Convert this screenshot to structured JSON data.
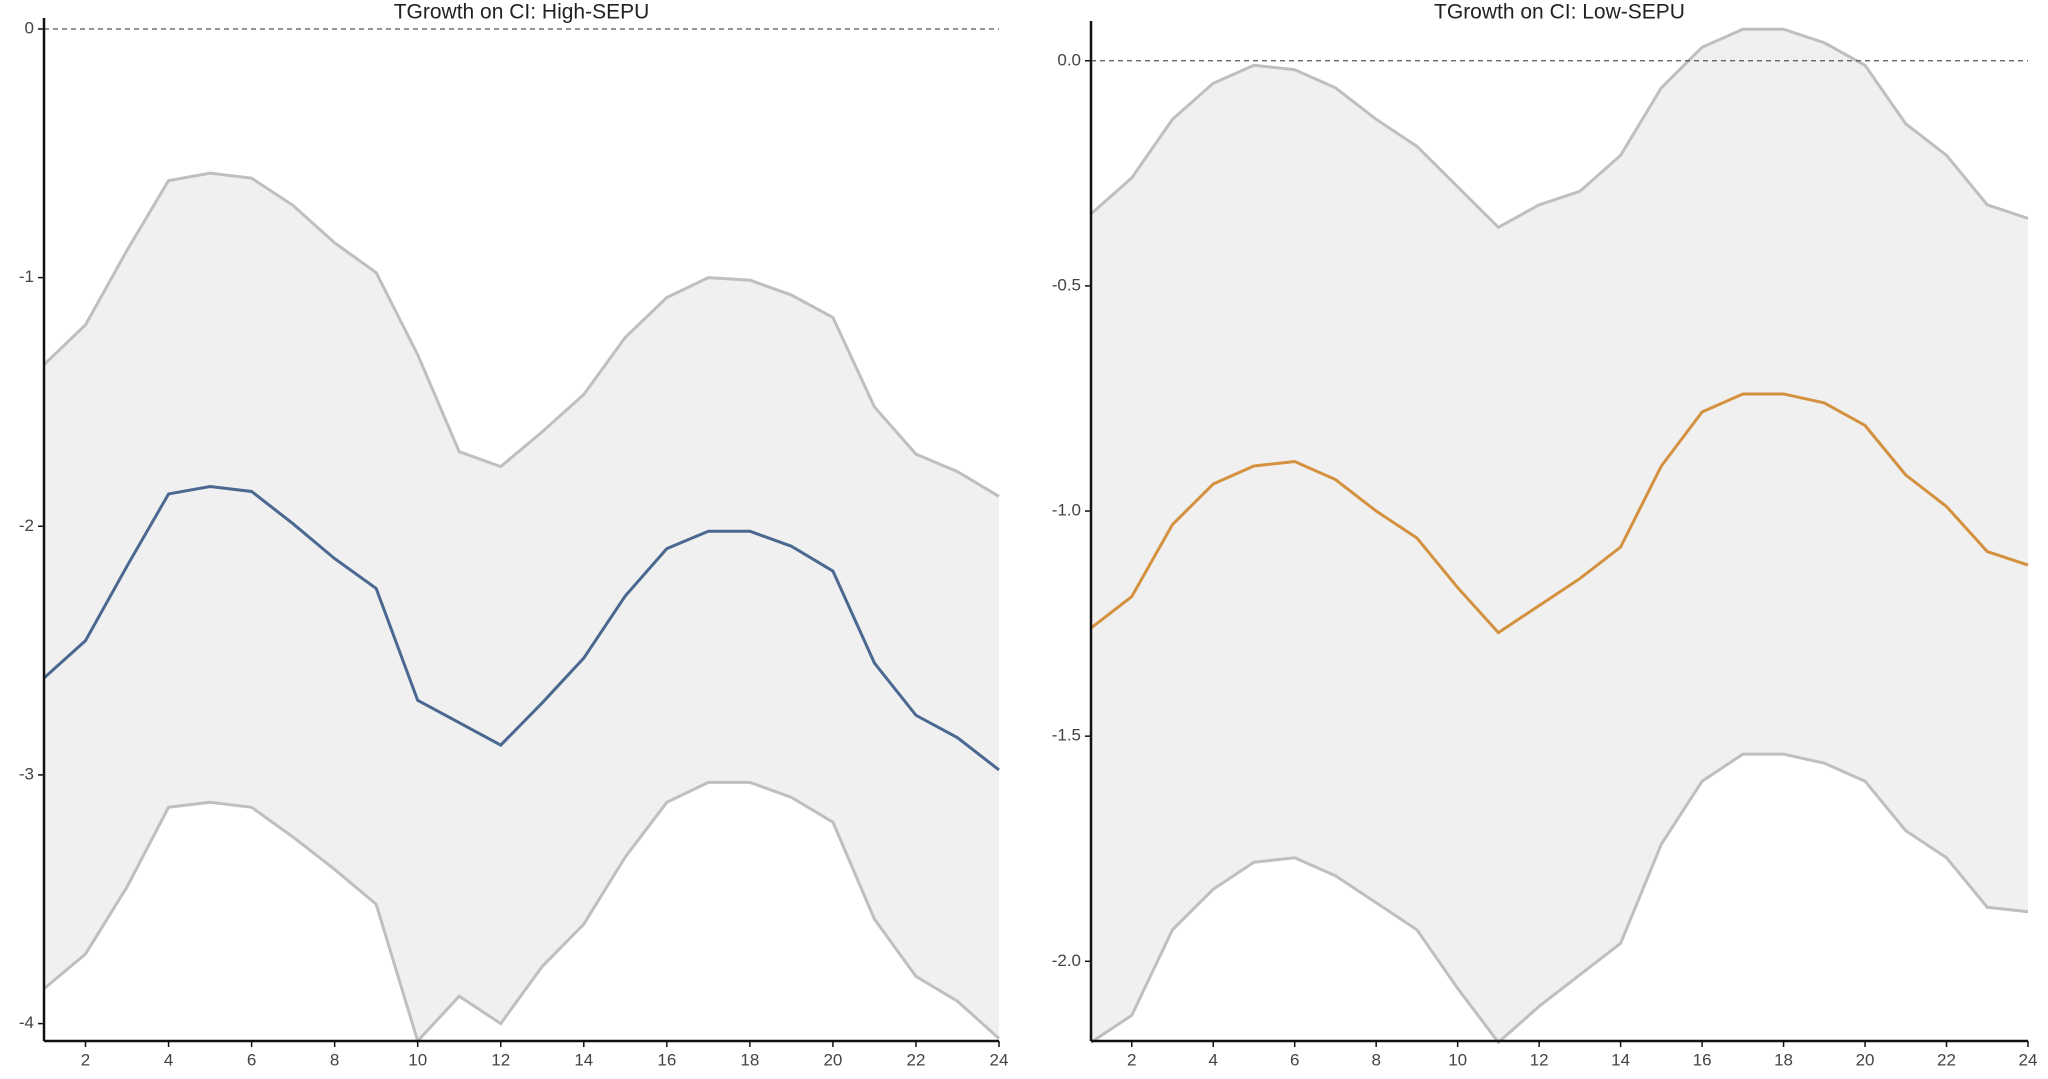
{
  "chart_data": [
    {
      "type": "line",
      "title": "TGrowth on CI: High-SEPU",
      "x": [
        1,
        2,
        3,
        4,
        5,
        6,
        7,
        8,
        9,
        10,
        11,
        12,
        13,
        14,
        15,
        16,
        17,
        18,
        19,
        20,
        21,
        22,
        23,
        24
      ],
      "series": [
        {
          "color": "#4a6890",
          "values": [
            -2.61,
            -2.46,
            -2.16,
            -1.87,
            -1.84,
            -1.86,
            -1.99,
            -2.13,
            -2.25,
            -2.7,
            -2.79,
            -2.88,
            -2.71,
            -2.53,
            -2.28,
            -2.09,
            -2.02,
            -2.02,
            -2.08,
            -2.18,
            -2.55,
            -2.76,
            -2.85,
            -2.98
          ]
        }
      ],
      "band": {
        "color": "#bfbfbf",
        "fill": "#f0f0f0",
        "upper": [
          -1.35,
          -1.19,
          -0.89,
          -0.61,
          -0.58,
          -0.6,
          -0.71,
          -0.86,
          -0.98,
          -1.31,
          -1.7,
          -1.76,
          -1.62,
          -1.47,
          -1.24,
          -1.08,
          -1.0,
          -1.01,
          -1.07,
          -1.16,
          -1.52,
          -1.71,
          -1.78,
          -1.88
        ],
        "lower": [
          -3.86,
          -3.72,
          -3.45,
          -3.13,
          -3.11,
          -3.13,
          -3.25,
          -3.38,
          -3.52,
          -4.07,
          -3.89,
          -4.0,
          -3.77,
          -3.6,
          -3.33,
          -3.11,
          -3.03,
          -3.03,
          -3.09,
          -3.19,
          -3.58,
          -3.81,
          -3.91,
          -4.06
        ]
      },
      "hline": 0,
      "xlim": [
        1,
        24
      ],
      "xticks": [
        2,
        4,
        6,
        8,
        10,
        12,
        14,
        16,
        18,
        20,
        22,
        24
      ],
      "ylim": [
        -4.07,
        0.02
      ],
      "yticks": [
        0,
        -1,
        -2,
        -3,
        -4
      ]
    },
    {
      "type": "line",
      "title": "TGrowth on CI: Low-SEPU",
      "x": [
        1,
        2,
        3,
        4,
        5,
        6,
        7,
        8,
        9,
        10,
        11,
        12,
        13,
        14,
        15,
        16,
        17,
        18,
        19,
        20,
        21,
        22,
        23,
        24
      ],
      "series": [
        {
          "color": "#d4913f",
          "values": [
            -1.26,
            -1.19,
            -1.03,
            -0.94,
            -0.9,
            -0.89,
            -0.93,
            -1.0,
            -1.06,
            -1.17,
            -1.27,
            -1.21,
            -1.15,
            -1.08,
            -0.9,
            -0.78,
            -0.74,
            -0.74,
            -0.76,
            -0.81,
            -0.92,
            -0.99,
            -1.09,
            -1.12
          ]
        }
      ],
      "band": {
        "color": "#bfbfbf",
        "fill": "#f0f0f0",
        "upper": [
          -0.34,
          -0.26,
          -0.13,
          -0.05,
          -0.01,
          -0.02,
          -0.06,
          -0.13,
          -0.19,
          -0.28,
          -0.37,
          -0.32,
          -0.29,
          -0.21,
          -0.06,
          0.03,
          0.07,
          0.07,
          0.04,
          -0.01,
          -0.14,
          -0.21,
          -0.32,
          -0.35
        ],
        "lower": [
          -2.18,
          -2.12,
          -1.93,
          -1.84,
          -1.78,
          -1.77,
          -1.81,
          -1.87,
          -1.93,
          -2.06,
          -2.18,
          -2.1,
          -2.03,
          -1.96,
          -1.74,
          -1.6,
          -1.54,
          -1.54,
          -1.56,
          -1.6,
          -1.71,
          -1.77,
          -1.88,
          -1.89
        ]
      },
      "hline": 0,
      "xlim": [
        1,
        24
      ],
      "xticks": [
        2,
        4,
        6,
        8,
        10,
        12,
        14,
        16,
        18,
        20,
        22,
        24
      ],
      "ylim": [
        -2.177,
        0.075
      ],
      "yticks": [
        {
          "value": 0,
          "label": "0.0"
        },
        -0.5,
        {
          "value": -1,
          "label": "-1.0"
        },
        -1.5,
        {
          "value": -2,
          "label": "-2.0"
        }
      ]
    }
  ]
}
